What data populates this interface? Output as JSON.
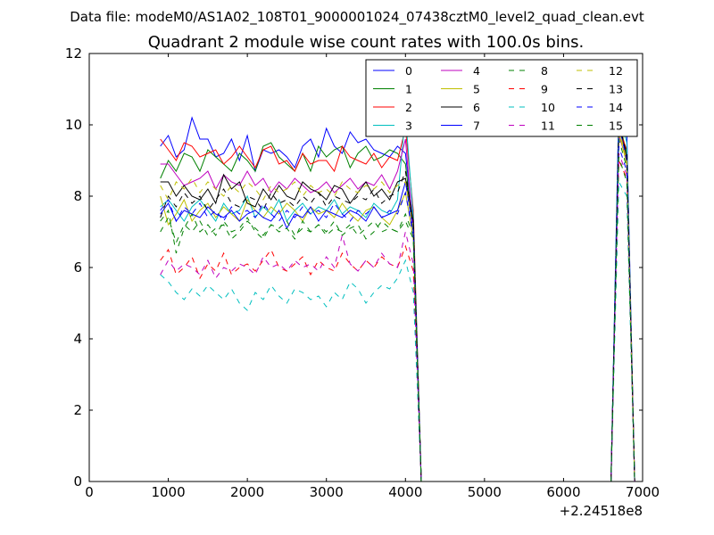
{
  "chart_data": {
    "type": "line",
    "suptitle": "Data file: modeM0/AS1A02_108T01_9000001024_07438cztM0_level2_quad_clean.evt",
    "title": "Quadrant 2 module wise count rates with 100.0s bins.",
    "xlabel": "",
    "ylabel": "",
    "x_offset_label": "+2.24518e8",
    "xlim": [
      0,
      7000
    ],
    "ylim": [
      0,
      12
    ],
    "xticks": [
      0,
      1000,
      2000,
      3000,
      4000,
      5000,
      6000,
      7000
    ],
    "xtick_labels": [
      "0",
      "1000",
      "2000",
      "3000",
      "4000",
      "5000",
      "6000",
      "7000"
    ],
    "yticks": [
      0,
      2,
      4,
      6,
      8,
      10,
      12
    ],
    "ytick_labels": [
      "0",
      "2",
      "4",
      "6",
      "8",
      "10",
      "12"
    ],
    "grid": false,
    "legend": {
      "position": "top-right",
      "columns": 4
    },
    "x": [
      900,
      1000,
      1100,
      1200,
      1300,
      1400,
      1500,
      1600,
      1700,
      1800,
      1900,
      2000,
      2100,
      2200,
      2300,
      2400,
      2500,
      2600,
      2700,
      2800,
      2900,
      3000,
      3100,
      3200,
      3300,
      3400,
      3500,
      3600,
      3700,
      3800,
      3900,
      4000,
      4100,
      4200,
      6600,
      6700,
      6800,
      6900
    ],
    "series": [
      {
        "name": "0",
        "color": "#0000ff",
        "dash": "solid",
        "values": [
          9.4,
          9.7,
          9.1,
          9.3,
          10.2,
          9.6,
          9.6,
          9.1,
          9.2,
          9.6,
          9.0,
          9.7,
          8.7,
          9.3,
          9.2,
          9.3,
          9.1,
          8.8,
          9.4,
          9.6,
          9.1,
          9.9,
          9.4,
          9.2,
          9.8,
          9.5,
          9.6,
          9.3,
          9.2,
          9.1,
          9.4,
          9.2,
          7.2,
          0,
          0,
          10.6,
          9.8,
          0
        ]
      },
      {
        "name": "1",
        "color": "#008000",
        "dash": "solid",
        "values": [
          8.5,
          9.0,
          8.7,
          9.2,
          9.1,
          8.7,
          9.3,
          9.1,
          8.9,
          8.7,
          9.2,
          9.0,
          8.7,
          9.4,
          9.5,
          9.1,
          8.9,
          8.7,
          9.2,
          8.7,
          9.4,
          9.1,
          9.3,
          9.4,
          8.8,
          9.2,
          9.4,
          9.0,
          9.1,
          9.3,
          9.2,
          8.9,
          7.0,
          0,
          0,
          10.1,
          9.2,
          0
        ]
      },
      {
        "name": "2",
        "color": "#ff0000",
        "dash": "solid",
        "values": [
          9.6,
          9.3,
          9.0,
          9.5,
          9.4,
          9.1,
          9.2,
          9.3,
          8.9,
          9.1,
          9.4,
          9.1,
          8.8,
          9.3,
          9.4,
          8.9,
          9.0,
          8.7,
          9.2,
          8.9,
          9.0,
          9.0,
          8.7,
          9.4,
          9.1,
          9.0,
          8.9,
          9.2,
          8.8,
          9.1,
          9.0,
          9.9,
          7.6,
          0,
          0,
          9.9,
          9.3,
          0
        ]
      },
      {
        "name": "3",
        "color": "#00bfbf",
        "dash": "solid",
        "values": [
          7.7,
          7.9,
          7.6,
          7.3,
          7.7,
          7.9,
          7.6,
          7.3,
          7.8,
          7.5,
          7.6,
          8.0,
          7.4,
          7.7,
          7.5,
          7.9,
          7.3,
          7.6,
          7.8,
          7.5,
          7.7,
          7.6,
          7.9,
          7.5,
          7.7,
          7.6,
          7.4,
          7.8,
          7.6,
          7.5,
          7.9,
          10.3,
          7.4,
          0,
          0,
          10.4,
          9.5,
          0
        ]
      },
      {
        "name": "4",
        "color": "#bf00bf",
        "dash": "solid",
        "values": [
          8.9,
          8.9,
          8.6,
          8.3,
          8.4,
          8.5,
          8.7,
          8.2,
          8.6,
          8.4,
          8.3,
          8.7,
          8.3,
          8.5,
          8.1,
          8.4,
          8.2,
          8.5,
          8.3,
          8.1,
          8.2,
          8.4,
          8.1,
          8.3,
          8.5,
          8.2,
          8.4,
          8.3,
          8.6,
          8.2,
          8.7,
          9.6,
          7.0,
          0,
          0,
          9.7,
          9.0,
          0
        ]
      },
      {
        "name": "5",
        "color": "#bfbf00",
        "dash": "solid",
        "values": [
          8.0,
          7.2,
          7.5,
          7.9,
          7.3,
          7.6,
          7.8,
          7.4,
          7.7,
          7.5,
          7.3,
          7.9,
          7.6,
          7.4,
          7.7,
          7.5,
          7.8,
          7.6,
          7.3,
          7.7,
          7.5,
          7.6,
          7.4,
          7.8,
          7.5,
          7.3,
          7.6,
          7.7,
          7.4,
          7.2,
          7.6,
          8.1,
          6.8,
          0,
          0,
          9.8,
          8.9,
          0
        ]
      },
      {
        "name": "6",
        "color": "#000000",
        "dash": "solid",
        "values": [
          8.4,
          8.4,
          8.0,
          8.3,
          8.0,
          7.9,
          8.2,
          7.8,
          8.6,
          8.2,
          8.4,
          7.8,
          7.7,
          8.2,
          7.9,
          8.3,
          8.0,
          7.9,
          8.4,
          8.2,
          8.1,
          7.9,
          8.3,
          8.2,
          7.8,
          8.1,
          8.4,
          8.0,
          8.2,
          7.9,
          8.4,
          8.5,
          7.3,
          0,
          0,
          10.0,
          9.1,
          0
        ]
      },
      {
        "name": "7",
        "color": "#0000ff",
        "dash": "solid",
        "values": [
          7.5,
          7.8,
          7.3,
          7.6,
          7.5,
          7.4,
          7.7,
          7.5,
          7.4,
          7.6,
          7.3,
          7.5,
          7.6,
          7.4,
          7.3,
          7.6,
          7.1,
          7.5,
          7.4,
          7.7,
          7.3,
          7.6,
          7.5,
          7.4,
          7.6,
          7.5,
          7.3,
          7.7,
          7.4,
          7.5,
          7.6,
          8.4,
          7.0,
          0,
          0,
          10.0,
          9.0,
          0
        ]
      },
      {
        "name": "8",
        "color": "#008000",
        "dash": "dash",
        "values": [
          7.3,
          7.6,
          6.4,
          7.1,
          7.5,
          7.0,
          7.2,
          6.9,
          7.3,
          7.0,
          7.1,
          7.4,
          7.0,
          6.8,
          7.2,
          7.1,
          7.3,
          6.9,
          7.1,
          7.0,
          7.2,
          7.0,
          7.3,
          6.9,
          7.1,
          7.2,
          6.8,
          7.0,
          7.3,
          7.1,
          7.0,
          7.5,
          6.9,
          0,
          0,
          9.6,
          8.8,
          0
        ]
      },
      {
        "name": "9",
        "color": "#ff0000",
        "dash": "dash",
        "values": [
          6.2,
          6.5,
          5.8,
          6.0,
          6.3,
          5.7,
          6.1,
          5.9,
          6.4,
          5.8,
          6.0,
          6.1,
          5.9,
          6.2,
          6.5,
          6.0,
          5.9,
          6.1,
          6.3,
          5.8,
          6.2,
          6.0,
          5.9,
          6.4,
          6.1,
          5.9,
          6.2,
          6.0,
          6.3,
          6.1,
          6.0,
          6.6,
          5.9,
          0,
          0,
          9.0,
          8.5,
          0
        ]
      },
      {
        "name": "10",
        "color": "#00bfbf",
        "dash": "dash",
        "values": [
          5.8,
          5.6,
          5.3,
          5.1,
          5.4,
          5.2,
          5.5,
          5.3,
          5.1,
          5.4,
          5.0,
          4.8,
          5.3,
          5.1,
          5.5,
          5.2,
          5.0,
          5.4,
          5.3,
          5.1,
          5.2,
          4.9,
          5.3,
          5.1,
          5.6,
          5.4,
          5.0,
          5.3,
          5.5,
          5.4,
          5.7,
          6.2,
          5.3,
          0,
          0,
          8.4,
          8.0,
          0
        ]
      },
      {
        "name": "11",
        "color": "#bf00bf",
        "dash": "dash",
        "values": [
          5.8,
          6.2,
          5.9,
          6.1,
          6.0,
          5.8,
          6.2,
          5.7,
          6.0,
          5.9,
          6.1,
          6.0,
          5.8,
          6.3,
          6.0,
          6.1,
          5.9,
          6.2,
          6.0,
          6.1,
          5.9,
          6.3,
          6.0,
          6.9,
          6.1,
          5.9,
          6.2,
          6.0,
          6.4,
          6.1,
          6.0,
          7.0,
          6.1,
          0,
          0,
          9.2,
          8.6,
          0
        ]
      },
      {
        "name": "12",
        "color": "#bfbf00",
        "dash": "dash",
        "values": [
          8.3,
          7.9,
          8.4,
          8.2,
          8.5,
          8.1,
          8.4,
          8.2,
          8.0,
          8.3,
          8.1,
          8.4,
          8.2,
          7.9,
          8.3,
          8.1,
          8.2,
          8.4,
          8.0,
          8.3,
          8.1,
          8.2,
          8.0,
          8.4,
          8.2,
          8.1,
          8.3,
          8.2,
          8.4,
          8.1,
          8.3,
          8.4,
          7.1,
          0,
          0,
          9.9,
          9.0,
          0
        ]
      },
      {
        "name": "13",
        "color": "#000000",
        "dash": "dash",
        "values": [
          7.4,
          8.0,
          7.7,
          8.1,
          7.8,
          8.0,
          7.6,
          7.9,
          8.2,
          7.8,
          7.7,
          8.0,
          7.9,
          7.6,
          8.1,
          7.8,
          7.9,
          7.7,
          8.0,
          7.8,
          8.1,
          7.7,
          8.0,
          7.9,
          7.8,
          8.0,
          7.9,
          8.2,
          7.8,
          8.0,
          8.1,
          8.7,
          7.2,
          0,
          0,
          10.0,
          9.2,
          0
        ]
      },
      {
        "name": "14",
        "color": "#0000ff",
        "dash": "dash",
        "values": [
          7.6,
          7.9,
          7.3,
          7.7,
          7.5,
          7.8,
          7.4,
          7.6,
          7.3,
          7.7,
          7.5,
          7.6,
          7.4,
          7.8,
          7.5,
          7.3,
          7.6,
          7.4,
          7.7,
          7.5,
          7.6,
          7.4,
          7.8,
          7.5,
          7.3,
          7.6,
          7.5,
          7.7,
          7.4,
          7.6,
          7.5,
          8.1,
          6.9,
          0,
          0,
          9.4,
          8.7,
          0
        ]
      },
      {
        "name": "15",
        "color": "#008000",
        "dash": "dash",
        "values": [
          7.0,
          7.4,
          6.7,
          7.2,
          7.0,
          7.3,
          6.9,
          7.1,
          7.2,
          6.8,
          7.0,
          7.3,
          7.1,
          6.9,
          7.2,
          7.0,
          7.1,
          6.8,
          7.3,
          7.0,
          7.2,
          6.9,
          7.1,
          7.0,
          7.2,
          6.9,
          7.1,
          7.3,
          7.0,
          7.1,
          7.0,
          7.3,
          6.8,
          0,
          0,
          9.1,
          8.4,
          0
        ]
      }
    ]
  }
}
